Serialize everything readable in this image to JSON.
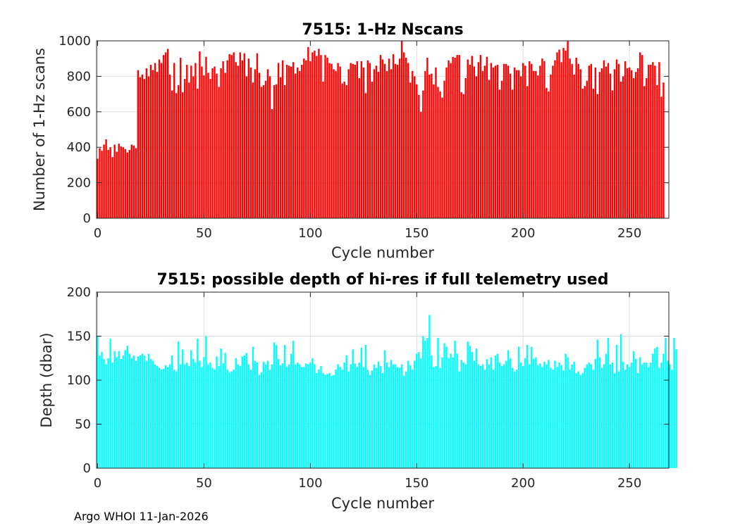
{
  "footer": "Argo WHOI 11-Jan-2026",
  "chart_data": [
    {
      "type": "bar",
      "color": "#ff0000",
      "title": "7515: 1-Hz Nscans",
      "xlabel": "Cycle number",
      "ylabel": "Number of 1-Hz scans",
      "xlim": [
        -0.5,
        268.5
      ],
      "ylim": [
        0,
        1000
      ],
      "xticks": [
        0,
        50,
        100,
        150,
        200,
        250
      ],
      "yticks": [
        0,
        200,
        400,
        600,
        800,
        1000
      ],
      "grid": true,
      "x_start": 0,
      "values": [
        335,
        395,
        380,
        415,
        445,
        385,
        400,
        345,
        415,
        375,
        420,
        405,
        400,
        390,
        370,
        385,
        415,
        410,
        395,
        835,
        795,
        810,
        785,
        845,
        800,
        865,
        835,
        875,
        825,
        895,
        875,
        920,
        935,
        955,
        810,
        720,
        875,
        705,
        750,
        905,
        710,
        785,
        865,
        765,
        860,
        800,
        875,
        730,
        940,
        855,
        805,
        910,
        820,
        785,
        845,
        855,
        815,
        740,
        845,
        885,
        820,
        890,
        925,
        920,
        935,
        880,
        860,
        935,
        890,
        930,
        800,
        900,
        850,
        765,
        840,
        930,
        820,
        740,
        750,
        775,
        840,
        800,
        615,
        750,
        755,
        875,
        795,
        890,
        750,
        865,
        860,
        855,
        880,
        815,
        850,
        830,
        865,
        900,
        890,
        965,
        885,
        935,
        945,
        915,
        955,
        920,
        770,
        920,
        905,
        875,
        870,
        840,
        830,
        875,
        855,
        760,
        770,
        750,
        840,
        875,
        870,
        865,
        885,
        790,
        885,
        850,
        705,
        890,
        875,
        770,
        840,
        860,
        825,
        920,
        895,
        870,
        830,
        900,
        840,
        925,
        870,
        865,
        900,
        1005,
        935,
        905,
        875,
        765,
        830,
        800,
        755,
        695,
        600,
        720,
        830,
        905,
        810,
        815,
        755,
        850,
        740,
        715,
        680,
        775,
        850,
        890,
        875,
        910,
        905,
        920,
        920,
        710,
        700,
        790,
        895,
        865,
        915,
        855,
        800,
        880,
        920,
        830,
        860,
        910,
        780,
        875,
        850,
        860,
        865,
        725,
        775,
        870,
        870,
        860,
        815,
        725,
        850,
        835,
        835,
        800,
        875,
        860,
        745,
        885,
        870,
        830,
        830,
        805,
        860,
        900,
        885,
        735,
        715,
        810,
        860,
        890,
        935,
        950,
        880,
        960,
        945,
        1000,
        900,
        870,
        810,
        905,
        870,
        840,
        730,
        745,
        775,
        860,
        870,
        730,
        850,
        700,
        825,
        845,
        890,
        855,
        875,
        815,
        720,
        840,
        895,
        870,
        770,
        800,
        885,
        845,
        850,
        835,
        790,
        825,
        845,
        935,
        920,
        745,
        790,
        865,
        865,
        880,
        860,
        750,
        880,
        685,
        765
      ]
    },
    {
      "type": "bar",
      "color": "#00ffff",
      "title": "7515: possible depth of hi-res if full telemetry used",
      "xlabel": "Cycle number",
      "ylabel": "Depth (dbar)",
      "xlim": [
        -0.5,
        268.5
      ],
      "ylim": [
        0,
        200
      ],
      "xticks": [
        0,
        50,
        100,
        150,
        200,
        250
      ],
      "yticks": [
        0,
        50,
        100,
        150,
        200
      ],
      "grid": true,
      "x_start": 0,
      "values": [
        150,
        128,
        132,
        124,
        118,
        125,
        147,
        120,
        133,
        126,
        133,
        124,
        128,
        134,
        139,
        130,
        125,
        128,
        122,
        127,
        128,
        130,
        128,
        122,
        130,
        124,
        122,
        118,
        116,
        114,
        112,
        113,
        117,
        115,
        118,
        128,
        112,
        110,
        144,
        118,
        135,
        118,
        120,
        116,
        134,
        124,
        120,
        147,
        122,
        115,
        126,
        150,
        118,
        120,
        114,
        112,
        127,
        116,
        136,
        119,
        131,
        112,
        109,
        110,
        112,
        125,
        118,
        116,
        127,
        128,
        131,
        118,
        112,
        138,
        122,
        120,
        106,
        109,
        121,
        118,
        122,
        112,
        118,
        143,
        140,
        124,
        117,
        119,
        140,
        115,
        118,
        130,
        145,
        118,
        120,
        118,
        115,
        115,
        119,
        118,
        120,
        125,
        118,
        108,
        112,
        116,
        108,
        106,
        107,
        108,
        105,
        106,
        112,
        118,
        115,
        112,
        120,
        128,
        110,
        118,
        135,
        119,
        115,
        120,
        137,
        115,
        140,
        112,
        106,
        111,
        118,
        114,
        121,
        116,
        108,
        134,
        120,
        115,
        123,
        118,
        118,
        115,
        114,
        118,
        105,
        110,
        122,
        117,
        112,
        122,
        130,
        132,
        125,
        150,
        145,
        148,
        174,
        128,
        115,
        116,
        148,
        114,
        126,
        142,
        138,
        125,
        130,
        126,
        145,
        130,
        110,
        123,
        120,
        118,
        144,
        139,
        132,
        122,
        136,
        118,
        116,
        118,
        112,
        124,
        118,
        126,
        112,
        128,
        130,
        120,
        116,
        118,
        122,
        134,
        125,
        114,
        110,
        112,
        138,
        120,
        116,
        125,
        140,
        118,
        138,
        124,
        126,
        117,
        119,
        115,
        121,
        118,
        123,
        114,
        112,
        122,
        115,
        120,
        117,
        111,
        130,
        126,
        112,
        118,
        121,
        108,
        110,
        106,
        108,
        114,
        118,
        120,
        118,
        112,
        124,
        146,
        126,
        114,
        118,
        130,
        148,
        118,
        120,
        108,
        140,
        110,
        152,
        121,
        112,
        118,
        115,
        120,
        133,
        124,
        108,
        126,
        118,
        120,
        120,
        115,
        120,
        130,
        136,
        138,
        114,
        120,
        130,
        148,
        122,
        118,
        112,
        148,
        135
      ]
    }
  ]
}
